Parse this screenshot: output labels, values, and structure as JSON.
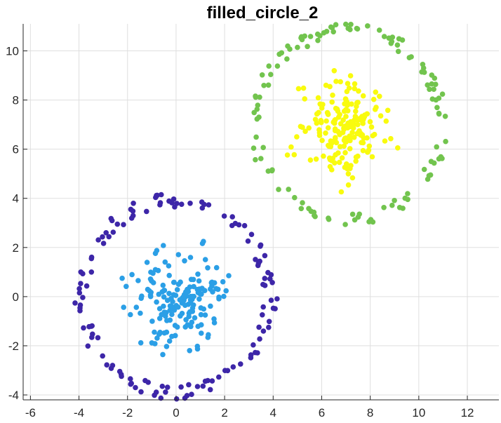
{
  "chart_data": {
    "type": "scatter",
    "title": "filled_circle_2",
    "xlabel": "",
    "ylabel": "",
    "xlim": [
      -6.3,
      13.3
    ],
    "ylim": [
      -4.2,
      11.1
    ],
    "xticks": [
      -6,
      -4,
      -2,
      0,
      2,
      4,
      6,
      8,
      10,
      12
    ],
    "yticks": [
      -4,
      -2,
      0,
      2,
      4,
      6,
      8,
      10
    ],
    "grid": true,
    "series": [
      {
        "color": "#3d26a8",
        "shape": "ring",
        "center": [
          0,
          0
        ],
        "radius_range": [
          3.6,
          4.2
        ],
        "count": 130,
        "seed": 11
      },
      {
        "color": "#2b9fe6",
        "shape": "disk",
        "center": [
          0.2,
          -0.1
        ],
        "sigma": 0.95,
        "max_radius": 2.6,
        "count": 170,
        "seed": 23
      },
      {
        "color": "#72c44e",
        "shape": "ring",
        "center": [
          7.1,
          7.0
        ],
        "radius_range": [
          3.6,
          4.1
        ],
        "count": 120,
        "seed": 37
      },
      {
        "color": "#f9fb0e",
        "shape": "disk",
        "center": [
          7.0,
          6.9
        ],
        "sigma": 0.85,
        "max_radius": 2.8,
        "count": 190,
        "seed": 53
      }
    ]
  }
}
